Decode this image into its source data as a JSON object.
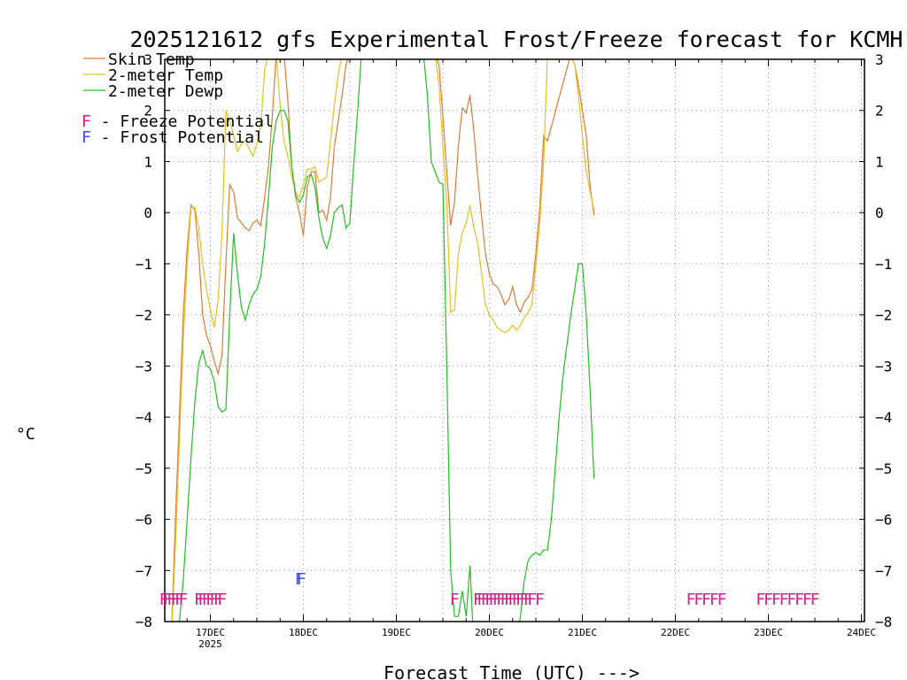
{
  "chart_data": {
    "type": "line",
    "title": "2025121612 gfs Experimental Frost/Freeze forecast for KCMH",
    "ylabel": "°C",
    "xlabel": "Forecast Time (UTC) --->",
    "ylim": [
      -8,
      3
    ],
    "y_ticks": [
      -8,
      -7,
      -6,
      -5,
      -4,
      -3,
      -2,
      -1,
      0,
      1,
      2,
      3
    ],
    "y_tick_labels_left": [
      "−8",
      "−7",
      "−6",
      "−5",
      "−4",
      "−3",
      "−2",
      "−1",
      "0",
      "1",
      "2",
      "3"
    ],
    "y_tick_labels_right": [
      "−8",
      "−7",
      "−6",
      "−5",
      "−4",
      "−3",
      "−2",
      "−1",
      "0",
      "1",
      "2",
      "3"
    ],
    "x_unit": "hours since 16DEC 00Z",
    "xlim": [
      12,
      192
    ],
    "x_ticks": [
      {
        "hour": 24,
        "label": "17DEC",
        "sub": "2025"
      },
      {
        "hour": 48,
        "label": "18DEC",
        "sub": ""
      },
      {
        "hour": 72,
        "label": "19DEC",
        "sub": ""
      },
      {
        "hour": 96,
        "label": "20DEC",
        "sub": ""
      },
      {
        "hour": 120,
        "label": "21DEC",
        "sub": ""
      },
      {
        "hour": 144,
        "label": "22DEC",
        "sub": ""
      },
      {
        "hour": 168,
        "label": "23DEC",
        "sub": ""
      },
      {
        "hour": 192,
        "label": "24DEC",
        "sub": ""
      }
    ],
    "grid": true,
    "legend": [
      {
        "name": "Skin Temp",
        "color": "#e07a34"
      },
      {
        "name": "2-meter Temp",
        "color": "#e8c020"
      },
      {
        "name": "2-meter Dewp",
        "color": "#20c020"
      }
    ],
    "potential_legend": [
      {
        "letter": "F",
        "text": " - Freeze Potential",
        "color": "#d0208c"
      },
      {
        "letter": "F",
        "text": " - Frost Potential",
        "color": "#4050d8"
      }
    ],
    "series": [
      {
        "name": "Skin Temp",
        "color": "#e07a34",
        "x": [
          14,
          15,
          16,
          17,
          18,
          19,
          20,
          21,
          22,
          23,
          24,
          25,
          26,
          27,
          28,
          29,
          30,
          31,
          32,
          33,
          34,
          35,
          36,
          37,
          38,
          39,
          40,
          41,
          42,
          43,
          44,
          45,
          46,
          47,
          48,
          49,
          50,
          51,
          52,
          53,
          54,
          55,
          56,
          57,
          58,
          59,
          60,
          61,
          62,
          63,
          64,
          65,
          82,
          83,
          84,
          85,
          86,
          87,
          88,
          89,
          90,
          91,
          92,
          93,
          94,
          95,
          96,
          97,
          98,
          99,
          100,
          101,
          102,
          103,
          104,
          105,
          106,
          107,
          108,
          109,
          110,
          111,
          117,
          118,
          119,
          120,
          121,
          122,
          123
        ],
        "y": [
          -8.1,
          -6.0,
          -4.0,
          -2.0,
          -0.7,
          0.15,
          0.05,
          -0.8,
          -2.0,
          -2.4,
          -2.6,
          -2.9,
          -3.15,
          -2.8,
          -1.0,
          0.55,
          0.4,
          -0.1,
          -0.2,
          -0.3,
          -0.35,
          -0.2,
          -0.15,
          -0.25,
          0.3,
          0.9,
          1.9,
          3.1,
          3.1,
          3.1,
          2.2,
          0.9,
          0.3,
          0.0,
          -0.45,
          0.5,
          0.8,
          0.8,
          0.0,
          0.05,
          -0.15,
          0.3,
          1.3,
          1.8,
          2.3,
          2.9,
          3.1,
          3.1,
          3.1,
          3.1,
          3.1,
          3.1,
          3.1,
          2.9,
          1.9,
          0.8,
          -0.25,
          0.2,
          1.3,
          2.05,
          1.95,
          2.3,
          1.6,
          0.7,
          -0.1,
          -0.8,
          -1.2,
          -1.4,
          -1.45,
          -1.6,
          -1.8,
          -1.7,
          -1.45,
          -1.8,
          -1.95,
          -1.75,
          -1.65,
          -1.5,
          -0.8,
          0.1,
          1.5,
          1.4,
          3.1,
          2.9,
          2.5,
          2.0,
          1.5,
          0.5,
          -0.05
        ]
      },
      {
        "name": "2-meter Temp",
        "color": "#e8c020",
        "x": [
          14,
          15,
          16,
          17,
          18,
          19,
          20,
          21,
          22,
          23,
          24,
          25,
          26,
          27,
          28,
          29,
          30,
          31,
          32,
          33,
          34,
          35,
          36,
          37,
          38,
          39,
          40,
          41,
          42,
          43,
          44,
          45,
          46,
          47,
          48,
          49,
          50,
          51,
          52,
          53,
          54,
          55,
          56,
          57,
          58,
          59,
          60,
          61,
          62,
          63,
          64,
          65,
          82,
          83,
          84,
          85,
          86,
          87,
          88,
          89,
          90,
          91,
          92,
          93,
          94,
          95,
          96,
          97,
          98,
          99,
          100,
          101,
          102,
          103,
          104,
          105,
          106,
          107,
          108,
          109,
          110,
          111,
          117,
          118,
          119,
          120,
          121,
          122,
          123
        ],
        "y": [
          -8.2,
          -6.5,
          -4.5,
          -2.5,
          -1.0,
          0.1,
          0.1,
          -0.3,
          -1.0,
          -1.5,
          -1.9,
          -2.25,
          -1.7,
          -0.4,
          2.0,
          1.8,
          1.5,
          1.2,
          1.35,
          1.4,
          1.25,
          1.1,
          1.35,
          1.7,
          2.8,
          3.1,
          3.1,
          3.1,
          2.1,
          1.4,
          1.1,
          0.7,
          0.4,
          0.3,
          0.55,
          0.85,
          0.85,
          0.9,
          0.6,
          0.65,
          0.7,
          1.4,
          2.1,
          2.7,
          3.1,
          3.1,
          3.1,
          3.1,
          3.1,
          3.1,
          3.1,
          3.1,
          3.1,
          2.5,
          1.3,
          0.2,
          -1.95,
          -1.9,
          -0.8,
          -0.4,
          -0.2,
          0.15,
          -0.3,
          -0.6,
          -1.2,
          -1.8,
          -2.0,
          -2.1,
          -2.25,
          -2.3,
          -2.35,
          -2.3,
          -2.2,
          -2.3,
          -2.2,
          -2.05,
          -1.95,
          -1.8,
          -1.0,
          -0.2,
          1.0,
          3.1,
          3.1,
          2.9,
          2.3,
          1.5,
          0.8,
          0.4,
          0.05
        ]
      },
      {
        "name": "2-meter Dewp",
        "color": "#20c020",
        "x": [
          15,
          16,
          17,
          18,
          19,
          20,
          21,
          22,
          23,
          24,
          25,
          26,
          27,
          28,
          29,
          30,
          31,
          32,
          33,
          34,
          35,
          36,
          37,
          38,
          39,
          40,
          41,
          42,
          43,
          44,
          45,
          46,
          47,
          48,
          49,
          50,
          51,
          52,
          53,
          54,
          55,
          56,
          57,
          58,
          59,
          60,
          61,
          62,
          63,
          64,
          65,
          66,
          79,
          80,
          81,
          82,
          83,
          84,
          85,
          86,
          87,
          88,
          89,
          90,
          91,
          92,
          93,
          94,
          95,
          96,
          97,
          98,
          99,
          100,
          101,
          102,
          103,
          104,
          105,
          106,
          107,
          108,
          109,
          110,
          111,
          112,
          113,
          114,
          115,
          116,
          117,
          118,
          119,
          120,
          121,
          122,
          123
        ],
        "y": [
          -8.3,
          -8.0,
          -7.2,
          -6.0,
          -4.8,
          -3.7,
          -2.95,
          -2.7,
          -3.0,
          -3.05,
          -3.3,
          -3.8,
          -3.9,
          -3.85,
          -2.0,
          -0.4,
          -1.2,
          -1.85,
          -2.1,
          -1.8,
          -1.6,
          -1.5,
          -1.25,
          -0.6,
          0.3,
          1.3,
          1.8,
          2.0,
          2.0,
          1.8,
          0.9,
          0.35,
          0.2,
          0.35,
          0.7,
          0.75,
          0.5,
          -0.1,
          -0.5,
          -0.7,
          -0.45,
          0.0,
          0.1,
          0.15,
          -0.3,
          -0.2,
          0.95,
          2.0,
          3.1,
          3.1,
          3.1,
          3.1,
          3.1,
          2.3,
          1.0,
          0.8,
          0.6,
          0.55,
          -3.0,
          -7.0,
          -7.9,
          -7.9,
          -7.4,
          -7.9,
          -6.9,
          -8.5,
          -8.5,
          -8.5,
          -8.5,
          -8.5,
          -8.5,
          -8.5,
          -8.5,
          -8.5,
          -8.5,
          -8.5,
          -8.5,
          -7.9,
          -7.2,
          -6.8,
          -6.7,
          -6.65,
          -6.7,
          -6.6,
          -6.6,
          -6.0,
          -5.0,
          -4.0,
          -3.2,
          -2.6,
          -2.0,
          -1.5,
          -1.0,
          -1.0,
          -2.0,
          -3.5,
          -5.2
        ]
      }
    ],
    "freeze_markers": {
      "letter": "F",
      "color": "#d0208c",
      "y": -7.55,
      "hours": [
        12,
        13,
        14,
        15,
        16,
        17,
        21,
        22,
        23,
        24,
        25,
        26,
        27,
        87,
        93,
        94,
        95,
        96,
        97,
        98,
        99,
        100,
        101,
        102,
        103,
        104,
        105,
        106,
        107,
        109,
        148,
        150,
        152,
        154,
        156,
        166,
        168,
        170,
        172,
        174,
        176,
        178,
        180
      ]
    },
    "frost_markers": {
      "letter": "F",
      "color": "#4050d8",
      "y": -7.15,
      "hours": [
        47,
        47.5
      ]
    }
  }
}
